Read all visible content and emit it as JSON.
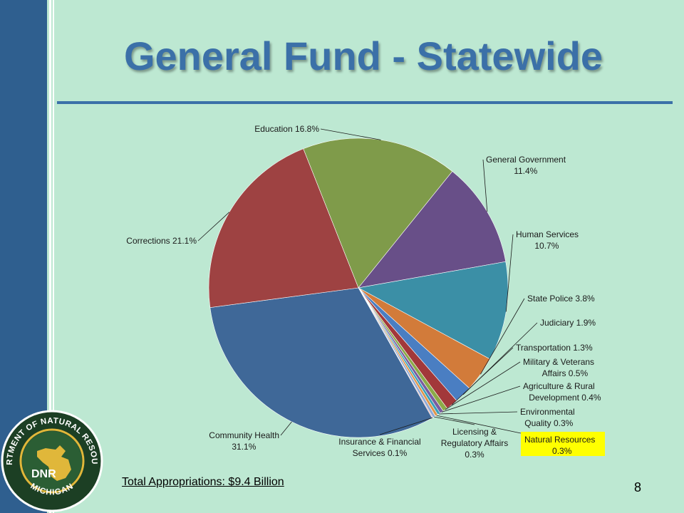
{
  "slide": {
    "title": "General Fund - Statewide",
    "total": "Total Appropriations: $9.4 Billion",
    "page_number": "8"
  },
  "logo": {
    "ring_text": "DEPARTMENT OF NATURAL RESOURCES",
    "bottom_text": "MICHIGAN",
    "center_text": "DNR"
  },
  "chart_data": {
    "type": "pie",
    "title": "",
    "slices": [
      {
        "label": "Education",
        "value": 16.8,
        "percent": "16.8%",
        "color": "#7f9b4a",
        "text": [
          "Education 16.8%"
        ]
      },
      {
        "label": "General Government",
        "value": 11.4,
        "percent": "11.4%",
        "color": "#684f88",
        "text": [
          "General Government",
          "11.4%"
        ]
      },
      {
        "label": "Human Services",
        "value": 10.7,
        "percent": "10.7%",
        "color": "#3b8fa6",
        "text": [
          "Human Services",
          "10.7%"
        ]
      },
      {
        "label": "State Police",
        "value": 3.8,
        "percent": "3.8%",
        "color": "#d27b3a",
        "text": [
          "State Police 3.8%"
        ]
      },
      {
        "label": "Judiciary",
        "value": 1.9,
        "percent": "1.9%",
        "color": "#4a7ec2",
        "text": [
          "Judiciary 1.9%"
        ]
      },
      {
        "label": "Transportation",
        "value": 1.3,
        "percent": "1.3%",
        "color": "#a2383a",
        "text": [
          "Transportation 1.3%"
        ]
      },
      {
        "label": "Military & Veterans Affairs",
        "value": 0.5,
        "percent": "0.5%",
        "color": "#8caa48",
        "text": [
          "Military & Veterans",
          "Affairs 0.5%"
        ]
      },
      {
        "label": "Agriculture & Rural Development",
        "value": 0.4,
        "percent": "0.4%",
        "color": "#7a5ca0",
        "text": [
          "Agriculture & Rural",
          "Development 0.4%"
        ]
      },
      {
        "label": "Environmental Quality",
        "value": 0.3,
        "percent": "0.3%",
        "color": "#3aa0b8",
        "text": [
          "Environmental",
          "Quality 0.3%"
        ]
      },
      {
        "label": "Natural Resources",
        "value": 0.3,
        "percent": "0.3%",
        "color": "#e0954a",
        "text": [
          "Natural Resources",
          "0.3%"
        ],
        "highlight": "#ffff00"
      },
      {
        "label": "Licensing & Regulatory Affairs",
        "value": 0.3,
        "percent": "0.3%",
        "color": "#8fa9d6",
        "text": [
          "Licensing &",
          "Regulatory Affairs",
          "0.3%"
        ]
      },
      {
        "label": "Insurance & Financial Services",
        "value": 0.1,
        "percent": "0.1%",
        "color": "#d69a9a",
        "text": [
          "Insurance & Financial",
          "Services 0.1%"
        ]
      },
      {
        "label": "Community Health",
        "value": 31.1,
        "percent": "31.1%",
        "color": "#3f6898",
        "text": [
          "Community Health",
          "31.1%"
        ]
      },
      {
        "label": "Corrections",
        "value": 21.1,
        "percent": "21.1%",
        "color": "#9e4242",
        "text": [
          "Corrections 21.1%"
        ]
      }
    ]
  }
}
